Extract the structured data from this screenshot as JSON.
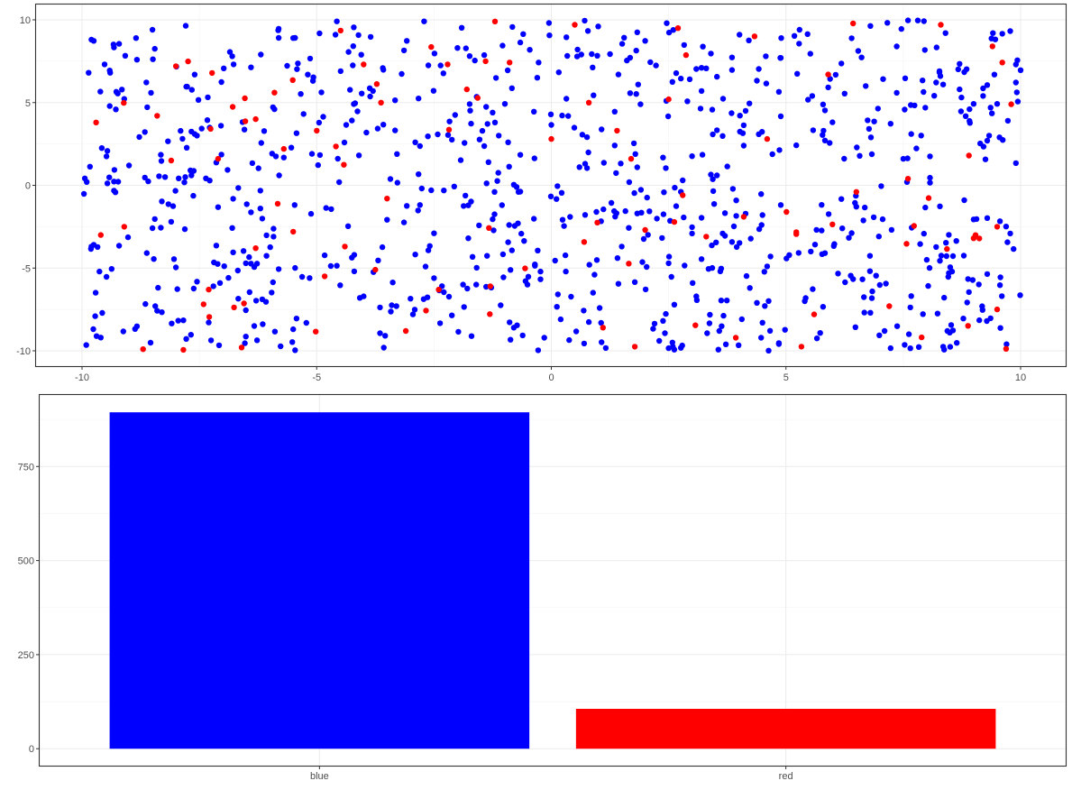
{
  "colors": {
    "blue": "#0000ff",
    "red": "#ff0000",
    "grid": "#ebebeb",
    "panel_border": "#333333"
  },
  "chart_data": [
    {
      "type": "scatter",
      "title": "",
      "xlabel": "",
      "ylabel": "",
      "xlim": [
        -10,
        10
      ],
      "ylim": [
        -10,
        10
      ],
      "x_ticks": [
        -10,
        -5,
        0,
        5,
        10
      ],
      "y_ticks": [
        -10,
        -5,
        0,
        5,
        10
      ],
      "x_tick_labels": [
        "-10",
        "-5",
        "0",
        "5",
        "10"
      ],
      "y_tick_labels": [
        "-10",
        "-5",
        "0",
        "5",
        "10"
      ],
      "grid": true,
      "legend": "none",
      "series": [
        {
          "color": "#0000ff",
          "count": 894,
          "sample_points": [
            [
              -9.9,
              0.2
            ],
            [
              -9.8,
              8.8
            ],
            [
              -9.6,
              -9.2
            ],
            [
              -9.4,
              6.8
            ],
            [
              -9.0,
              1.2
            ],
            [
              -8.5,
              9.4
            ],
            [
              -8.1,
              -2.2
            ],
            [
              -7.6,
              3.1
            ],
            [
              -7.2,
              -6.1
            ],
            [
              -6.8,
              7.8
            ],
            [
              -6.2,
              -1.4
            ],
            [
              -5.9,
              4.6
            ],
            [
              -5.5,
              -8.7
            ],
            [
              -5.1,
              1.9
            ],
            [
              -4.6,
              9.1
            ],
            [
              -4.2,
              -4.2
            ],
            [
              -3.8,
              5.7
            ],
            [
              -3.3,
              -7.3
            ],
            [
              -2.9,
              2.6
            ],
            [
              -2.5,
              -2.9
            ],
            [
              -2.0,
              8.3
            ],
            [
              -1.6,
              -6.0
            ],
            [
              -1.2,
              3.8
            ],
            [
              -0.7,
              -0.4
            ],
            [
              -0.3,
              6.5
            ],
            [
              0.2,
              -8.1
            ],
            [
              0.6,
              1.1
            ],
            [
              1.0,
              9.6
            ],
            [
              1.5,
              -3.7
            ],
            [
              1.9,
              4.9
            ],
            [
              2.3,
              -9.4
            ],
            [
              2.8,
              0.3
            ],
            [
              3.2,
              7.1
            ],
            [
              3.6,
              -5.2
            ],
            [
              4.1,
              2.4
            ],
            [
              4.5,
              -1.8
            ],
            [
              4.9,
              8.9
            ],
            [
              5.4,
              -7.0
            ],
            [
              5.8,
              3.3
            ],
            [
              6.2,
              -2.6
            ],
            [
              6.7,
              6.0
            ],
            [
              7.1,
              -8.8
            ],
            [
              7.5,
              1.6
            ],
            [
              8.0,
              -4.5
            ],
            [
              8.4,
              9.2
            ],
            [
              8.8,
              -0.9
            ],
            [
              9.2,
              5.4
            ],
            [
              9.6,
              -6.7
            ],
            [
              9.9,
              7.3
            ],
            [
              9.7,
              -9.6
            ]
          ]
        },
        {
          "color": "#ff0000",
          "count": 106,
          "sample_points": [
            [
              -9.7,
              3.8
            ],
            [
              -9.6,
              -3.0
            ],
            [
              -9.1,
              -2.5
            ],
            [
              -8.7,
              -9.9
            ],
            [
              -8.4,
              4.2
            ],
            [
              -8.1,
              1.5
            ],
            [
              -8.0,
              7.2
            ],
            [
              -7.3,
              -6.3
            ],
            [
              -7.1,
              1.6
            ],
            [
              -6.6,
              -9.8
            ],
            [
              -6.3,
              4.0
            ],
            [
              -6.3,
              -3.8
            ],
            [
              -5.9,
              5.6
            ],
            [
              -5.7,
              2.2
            ],
            [
              -5.5,
              -2.8
            ],
            [
              -5.0,
              3.3
            ],
            [
              -4.4,
              -3.7
            ],
            [
              -4.0,
              7.3
            ],
            [
              -3.5,
              -0.8
            ],
            [
              -3.1,
              -8.8
            ],
            [
              -2.4,
              -6.3
            ],
            [
              -1.8,
              5.8
            ],
            [
              -1.3,
              -6.1
            ],
            [
              -1.2,
              9.9
            ],
            [
              -1.4,
              7.5
            ],
            [
              0.0,
              2.8
            ],
            [
              0.5,
              9.7
            ],
            [
              0.8,
              5.0
            ],
            [
              1.1,
              -8.6
            ],
            [
              1.4,
              3.3
            ],
            [
              1.7,
              1.6
            ],
            [
              2.0,
              -2.7
            ],
            [
              2.5,
              5.2
            ],
            [
              2.7,
              9.5
            ],
            [
              2.8,
              -0.6
            ],
            [
              3.3,
              -3.1
            ],
            [
              4.1,
              -1.9
            ],
            [
              4.6,
              2.8
            ],
            [
              5.6,
              -7.8
            ],
            [
              5.9,
              6.7
            ],
            [
              6.5,
              -0.4
            ],
            [
              7.2,
              -7.3
            ],
            [
              7.6,
              0.4
            ],
            [
              8.3,
              9.7
            ],
            [
              8.9,
              1.8
            ],
            [
              9.0,
              -3.2
            ],
            [
              9.4,
              8.4
            ],
            [
              9.5,
              -2.5
            ],
            [
              9.8,
              4.9
            ],
            [
              9.5,
              -7.5
            ]
          ]
        }
      ]
    },
    {
      "type": "bar",
      "title": "",
      "xlabel": "",
      "ylabel": "",
      "categories": [
        "blue",
        "red"
      ],
      "values": [
        894,
        106
      ],
      "colors": [
        "#0000ff",
        "#ff0000"
      ],
      "ylim": [
        -45,
        940
      ],
      "y_ticks": [
        0,
        250,
        500,
        750
      ],
      "y_tick_labels": [
        "0",
        "250",
        "500",
        "750"
      ],
      "grid": true,
      "legend": "none"
    }
  ]
}
